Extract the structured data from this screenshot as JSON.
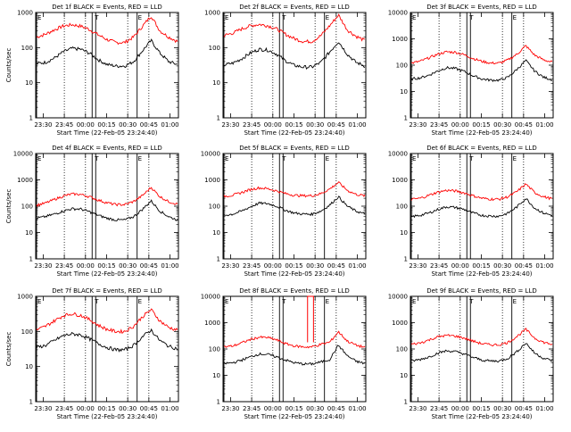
{
  "chart_data": [
    {
      "type": "line",
      "title": "Det 1f BLACK = Events, RED = LLD",
      "xlabel": "Start Time (22-Feb-05 23:24:40)",
      "ylabel": "Counts/sec",
      "y_scale": "log",
      "ylim": [
        1,
        1000
      ],
      "y_ticks": [
        "1",
        "10",
        "100",
        "1000"
      ],
      "x_ticks": [
        "23:30",
        "23:45",
        "00:00",
        "00:15",
        "00:30",
        "00:45",
        "01:00"
      ],
      "xlim_hours": [
        -0.578,
        1.1
      ],
      "markers": [
        {
          "label": "E",
          "x_hours": -0.578
        },
        {
          "label": "T",
          "x_hours": 0.1
        },
        {
          "label": "E",
          "x_hours": 0.6
        }
      ],
      "series": [
        {
          "color": "#ff0000",
          "values": [
            200,
            240,
            320,
            410,
            450,
            410,
            330,
            230,
            170,
            140,
            140,
            200,
            400,
            800,
            300,
            200,
            150
          ]
        },
        {
          "color": "#000000",
          "values": [
            35,
            38,
            50,
            75,
            95,
            90,
            70,
            45,
            33,
            30,
            30,
            40,
            80,
            160,
            70,
            40,
            33
          ]
        }
      ]
    },
    {
      "type": "line",
      "title": "Det 2f BLACK = Events, RED = LLD",
      "xlabel": "Start Time (22-Feb-05 23:24:40)",
      "ylabel": "",
      "y_scale": "log",
      "ylim": [
        1,
        1000
      ],
      "y_ticks": [
        "1",
        "10",
        "100",
        "1000"
      ],
      "x_ticks": [
        "23:30",
        "23:45",
        "00:00",
        "00:15",
        "00:30",
        "00:45",
        "01:00"
      ],
      "xlim_hours": [
        -0.578,
        1.1
      ],
      "markers": [
        {
          "label": "E",
          "x_hours": -0.578
        },
        {
          "label": "T",
          "x_hours": 0.1
        },
        {
          "label": "E",
          "x_hours": 0.6
        }
      ],
      "series": [
        {
          "color": "#ff0000",
          "values": [
            220,
            260,
            340,
            420,
            460,
            420,
            340,
            240,
            180,
            150,
            150,
            220,
            420,
            850,
            320,
            210,
            160
          ]
        },
        {
          "color": "#000000",
          "values": [
            32,
            36,
            48,
            70,
            90,
            85,
            65,
            42,
            31,
            28,
            28,
            38,
            75,
            150,
            65,
            38,
            30
          ]
        }
      ]
    },
    {
      "type": "line",
      "title": "Det 3f BLACK = Events, RED = LLD",
      "xlabel": "Start Time (22-Feb-05 23:24:40)",
      "ylabel": "",
      "y_scale": "log",
      "ylim": [
        1,
        10000
      ],
      "y_ticks": [
        "1",
        "10",
        "100",
        "1000",
        "10000"
      ],
      "x_ticks": [
        "23:30",
        "23:45",
        "00:00",
        "00:15",
        "00:30",
        "00:45",
        "01:00"
      ],
      "xlim_hours": [
        -0.578,
        1.1
      ],
      "markers": [
        {
          "label": "E",
          "x_hours": -0.578
        },
        {
          "label": "T",
          "x_hours": 0.1
        },
        {
          "label": "E",
          "x_hours": 0.6
        }
      ],
      "series": [
        {
          "color": "#ff0000",
          "values": [
            120,
            140,
            190,
            260,
            320,
            310,
            250,
            180,
            140,
            120,
            120,
            160,
            260,
            550,
            240,
            160,
            130
          ]
        },
        {
          "color": "#000000",
          "values": [
            30,
            33,
            42,
            60,
            80,
            75,
            58,
            40,
            30,
            27,
            27,
            35,
            70,
            150,
            60,
            35,
            28
          ]
        }
      ]
    },
    {
      "type": "line",
      "title": "Det 4f BLACK = Events, RED = LLD",
      "xlabel": "Start Time (22-Feb-05 23:24:40)",
      "ylabel": "Counts/sec",
      "y_scale": "log",
      "ylim": [
        1,
        10000
      ],
      "y_ticks": [
        "1",
        "10",
        "100",
        "1000",
        "10000"
      ],
      "x_ticks": [
        "23:30",
        "23:45",
        "00:00",
        "00:15",
        "00:30",
        "00:45",
        "01:00"
      ],
      "xlim_hours": [
        -0.578,
        1.1
      ],
      "markers": [
        {
          "label": "E",
          "x_hours": -0.578
        },
        {
          "label": "T",
          "x_hours": 0.1
        },
        {
          "label": "E",
          "x_hours": 0.6
        }
      ],
      "series": [
        {
          "color": "#ff0000",
          "values": [
            110,
            130,
            180,
            240,
            290,
            280,
            230,
            170,
            135,
            115,
            115,
            150,
            250,
            520,
            230,
            150,
            120
          ]
        },
        {
          "color": "#000000",
          "values": [
            35,
            40,
            50,
            65,
            80,
            78,
            62,
            45,
            35,
            30,
            30,
            40,
            75,
            160,
            65,
            40,
            30
          ]
        }
      ]
    },
    {
      "type": "line",
      "title": "Det 5f BLACK = Events, RED = LLD",
      "xlabel": "Start Time (22-Feb-05 23:24:40)",
      "ylabel": "",
      "y_scale": "log",
      "ylim": [
        1,
        10000
      ],
      "y_ticks": [
        "1",
        "10",
        "100",
        "1000",
        "10000"
      ],
      "x_ticks": [
        "23:30",
        "23:45",
        "00:00",
        "00:15",
        "00:30",
        "00:45",
        "01:00"
      ],
      "xlim_hours": [
        -0.578,
        1.1
      ],
      "markers": [
        {
          "label": "E",
          "x_hours": -0.578
        },
        {
          "label": "T",
          "x_hours": 0.1
        },
        {
          "label": "E",
          "x_hours": 0.6
        }
      ],
      "series": [
        {
          "color": "#ff0000",
          "values": [
            240,
            260,
            330,
            430,
            500,
            460,
            380,
            300,
            260,
            250,
            250,
            300,
            450,
            800,
            400,
            280,
            250
          ]
        },
        {
          "color": "#000000",
          "values": [
            45,
            50,
            65,
            95,
            130,
            125,
            100,
            70,
            55,
            50,
            50,
            65,
            110,
            230,
            100,
            65,
            50
          ]
        }
      ]
    },
    {
      "type": "line",
      "title": "Det 6f BLACK = Events, RED = LLD",
      "xlabel": "Start Time (22-Feb-05 23:24:40)",
      "ylabel": "",
      "y_scale": "log",
      "ylim": [
        1,
        10000
      ],
      "y_ticks": [
        "1",
        "10",
        "100",
        "1000",
        "10000"
      ],
      "x_ticks": [
        "23:30",
        "23:45",
        "00:00",
        "00:15",
        "00:30",
        "00:45",
        "01:00"
      ],
      "xlim_hours": [
        -0.578,
        1.1
      ],
      "markers": [
        {
          "label": "E",
          "x_hours": -0.578
        },
        {
          "label": "T",
          "x_hours": 0.1
        },
        {
          "label": "E",
          "x_hours": 0.6
        }
      ],
      "series": [
        {
          "color": "#ff0000",
          "values": [
            180,
            200,
            260,
            340,
            400,
            380,
            320,
            250,
            200,
            185,
            185,
            230,
            360,
            700,
            330,
            230,
            190
          ]
        },
        {
          "color": "#000000",
          "values": [
            40,
            45,
            55,
            75,
            95,
            90,
            75,
            55,
            45,
            42,
            42,
            55,
            95,
            200,
            85,
            55,
            45
          ]
        }
      ]
    },
    {
      "type": "line",
      "title": "Det 7f BLACK = Events, RED = LLD",
      "xlabel": "Start Time (22-Feb-05 23:24:40)",
      "ylabel": "Counts/sec",
      "y_scale": "log",
      "ylim": [
        1,
        1000
      ],
      "y_ticks": [
        "1",
        "10",
        "100",
        "1000"
      ],
      "x_ticks": [
        "23:30",
        "23:45",
        "00:00",
        "00:15",
        "00:30",
        "00:45",
        "01:00"
      ],
      "xlim_hours": [
        -0.578,
        1.1
      ],
      "markers": [
        {
          "label": "E",
          "x_hours": -0.578
        },
        {
          "label": "T",
          "x_hours": 0.1
        },
        {
          "label": "E",
          "x_hours": 0.6
        }
      ],
      "series": [
        {
          "color": "#ff0000",
          "values": [
            110,
            140,
            200,
            280,
            320,
            290,
            220,
            150,
            115,
            100,
            100,
            140,
            260,
            420,
            200,
            130,
            110
          ]
        },
        {
          "color": "#000000",
          "values": [
            35,
            40,
            55,
            75,
            85,
            80,
            62,
            45,
            35,
            30,
            30,
            40,
            70,
            110,
            55,
            38,
            32
          ]
        }
      ]
    },
    {
      "type": "line",
      "title": "Det 8f BLACK = Events, RED = LLD",
      "xlabel": "Start Time (22-Feb-05 23:24:40)",
      "ylabel": "",
      "y_scale": "log",
      "ylim": [
        1,
        10000
      ],
      "y_ticks": [
        "1",
        "10",
        "100",
        "1000",
        "10000"
      ],
      "x_ticks": [
        "23:30",
        "23:45",
        "00:00",
        "00:15",
        "00:30",
        "00:45",
        "01:00"
      ],
      "xlim_hours": [
        -0.578,
        1.1
      ],
      "markers": [
        {
          "label": "E",
          "x_hours": -0.578
        },
        {
          "label": "T",
          "x_hours": 0.1
        },
        {
          "label": "E",
          "x_hours": 0.6
        }
      ],
      "spike": {
        "color": "#ff0000",
        "x_start_hours": 0.42,
        "x_end_hours": 0.49,
        "value": 10000
      },
      "series": [
        {
          "color": "#ff0000",
          "values": [
            120,
            130,
            170,
            230,
            280,
            270,
            220,
            160,
            130,
            120,
            120,
            150,
            180,
            450,
            200,
            140,
            115
          ]
        },
        {
          "color": "#000000",
          "values": [
            28,
            30,
            38,
            50,
            65,
            62,
            50,
            38,
            30,
            27,
            27,
            32,
            40,
            140,
            55,
            34,
            28
          ]
        }
      ]
    },
    {
      "type": "line",
      "title": "Det 9f BLACK = Events, RED = LLD",
      "xlabel": "Start Time (22-Feb-05 23:24:40)",
      "ylabel": "",
      "y_scale": "log",
      "ylim": [
        1,
        10000
      ],
      "y_ticks": [
        "1",
        "10",
        "100",
        "1000",
        "10000"
      ],
      "x_ticks": [
        "23:30",
        "23:45",
        "00:00",
        "00:15",
        "00:30",
        "00:45",
        "01:00"
      ],
      "xlim_hours": [
        -0.578,
        1.1
      ],
      "markers": [
        {
          "label": "E",
          "x_hours": -0.578
        },
        {
          "label": "T",
          "x_hours": 0.1
        },
        {
          "label": "E",
          "x_hours": 0.6
        }
      ],
      "series": [
        {
          "color": "#ff0000",
          "values": [
            150,
            170,
            220,
            290,
            330,
            310,
            260,
            200,
            160,
            145,
            145,
            180,
            300,
            560,
            260,
            180,
            150
          ]
        },
        {
          "color": "#000000",
          "values": [
            35,
            40,
            50,
            70,
            85,
            80,
            65,
            48,
            38,
            35,
            35,
            45,
            80,
            170,
            70,
            45,
            36
          ]
        }
      ]
    }
  ]
}
